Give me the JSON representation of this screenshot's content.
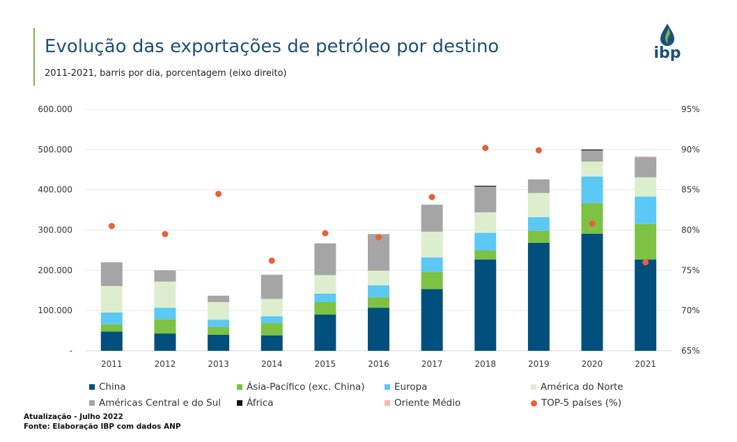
{
  "header": {
    "title": "Evolução das exportações de petróleo por destino",
    "subtitle": "2011-2021, barris por dia, porcentagem (eixo direito)",
    "logo_text": "ibp"
  },
  "footer": {
    "update": "Atualização - Julho 2022",
    "source": "Fonte: Elaboração IBP com dados ANP"
  },
  "colors": {
    "China": "#004f7c",
    "Ásia-Pacífico (exc. China)": "#7dc242",
    "Europa": "#5bc8f5",
    "América do Norte": "#ddeecf",
    "Américas Central e do Sul": "#a5a5a5",
    "África": "#111111",
    "Oriente Médio": "#f4b9a4",
    "TOP-5 países (%)": "#e8613c"
  },
  "chart_data": {
    "type": "bar",
    "stacked": true,
    "title": "Evolução das exportações de petróleo por destino",
    "categories": [
      "2011",
      "2012",
      "2013",
      "2014",
      "2015",
      "2016",
      "2017",
      "2018",
      "2019",
      "2020",
      "2021"
    ],
    "ylim": [
      0,
      600000
    ],
    "y_ticks": [
      "-",
      "100.000",
      "200.000",
      "300.000",
      "400.000",
      "500.000",
      "600.000"
    ],
    "y2lim": [
      65,
      95
    ],
    "y2_ticks": [
      "65%",
      "70%",
      "75%",
      "80%",
      "85%",
      "90%",
      "95%"
    ],
    "grid": true,
    "legend_position": "bottom",
    "series": [
      {
        "name": "China",
        "values": [
          48000,
          43000,
          40000,
          38000,
          90000,
          107000,
          153000,
          227000,
          268000,
          291000,
          227000
        ]
      },
      {
        "name": "Ásia-Pacífico (exc. China)",
        "values": [
          18000,
          35000,
          19000,
          31000,
          31000,
          26000,
          43000,
          22000,
          30000,
          76000,
          88000
        ]
      },
      {
        "name": "Europa",
        "values": [
          29000,
          29000,
          18000,
          17000,
          21000,
          30000,
          36000,
          44000,
          34000,
          66000,
          68000
        ]
      },
      {
        "name": "América do Norte",
        "values": [
          66000,
          65000,
          44000,
          43000,
          46000,
          36000,
          64000,
          51000,
          60000,
          37000,
          48000
        ]
      },
      {
        "name": "Américas Central e do Sul",
        "values": [
          59000,
          28000,
          16000,
          60000,
          79000,
          91000,
          67000,
          64000,
          34000,
          28000,
          50000
        ]
      },
      {
        "name": "África",
        "values": [
          0,
          0,
          0,
          0,
          0,
          0,
          0,
          2000,
          0,
          2000,
          0
        ]
      },
      {
        "name": "Oriente Médio",
        "values": [
          0,
          0,
          0,
          0,
          0,
          0,
          0,
          0,
          0,
          0,
          2000
        ]
      }
    ],
    "line_series": {
      "name": "TOP-5 países (%)",
      "axis": "right",
      "values": [
        80.5,
        79.5,
        84.5,
        76.2,
        79.6,
        79.1,
        84.1,
        90.2,
        89.9,
        80.8,
        76.0
      ]
    }
  }
}
